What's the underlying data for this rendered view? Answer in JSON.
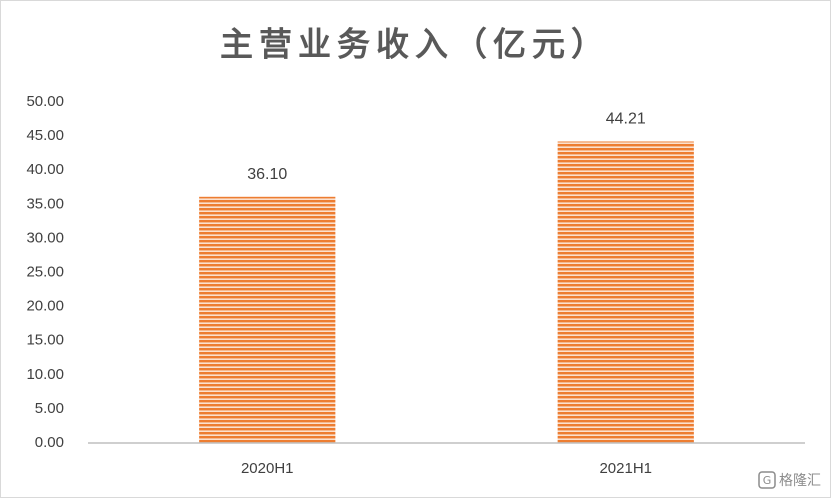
{
  "chart_data": {
    "type": "bar",
    "title": "主营业务收入（亿元）",
    "categories": [
      "2020H1",
      "2021H1"
    ],
    "values": [
      36.1,
      44.21
    ],
    "value_labels": [
      "36.10",
      "44.21"
    ],
    "color": "#ed7d31",
    "ylim": [
      0,
      50
    ],
    "yticks": [
      {
        "value": 0,
        "label": "0.00"
      },
      {
        "value": 5,
        "label": "5.00"
      },
      {
        "value": 10,
        "label": "10.00"
      },
      {
        "value": 15,
        "label": "15.00"
      },
      {
        "value": 20,
        "label": "20.00"
      },
      {
        "value": 25,
        "label": "25.00"
      },
      {
        "value": 30,
        "label": "30.00"
      },
      {
        "value": 35,
        "label": "35.00"
      },
      {
        "value": 40,
        "label": "40.00"
      },
      {
        "value": 45,
        "label": "45.00"
      },
      {
        "value": 50,
        "label": "50.00"
      }
    ],
    "grid": false
  },
  "watermark": "格隆汇"
}
